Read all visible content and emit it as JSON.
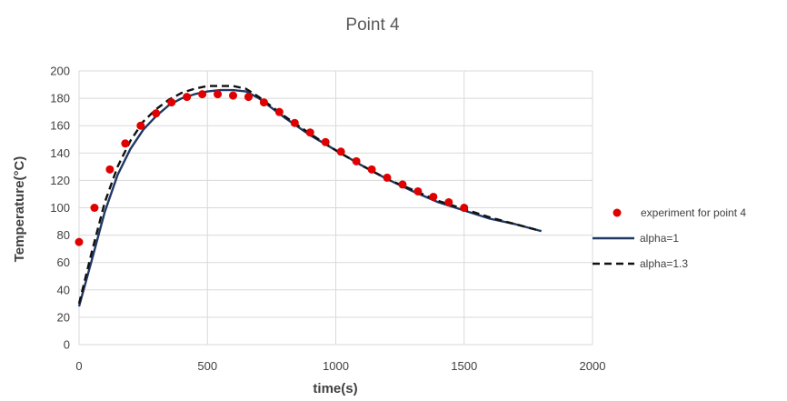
{
  "chart_data": {
    "type": "scatter",
    "title": "Point 4",
    "xlabel": "time(s)",
    "ylabel": "Temperature(°C)",
    "xlim": [
      0,
      2000
    ],
    "ylim": [
      0,
      200
    ],
    "xticks": [
      "0",
      "500",
      "1000",
      "1500",
      "2000"
    ],
    "yticks": [
      "0",
      "20",
      "40",
      "60",
      "80",
      "100",
      "120",
      "140",
      "160",
      "180",
      "200"
    ],
    "grid": "vertical and horizontal",
    "legend_position": "right",
    "series": [
      {
        "name": "experiment for point 4",
        "type": "scatter",
        "color": "#e00000",
        "x": [
          0,
          60,
          120,
          180,
          240,
          300,
          360,
          420,
          480,
          540,
          600,
          660,
          720,
          780,
          840,
          900,
          960,
          1020,
          1080,
          1140,
          1200,
          1260,
          1320,
          1380,
          1440,
          1500
        ],
        "y": [
          75,
          100,
          128,
          147,
          160,
          169,
          177,
          181,
          183,
          183,
          182,
          181,
          177,
          170,
          162,
          155,
          148,
          141,
          134,
          128,
          122,
          117,
          112,
          108,
          104,
          100
        ]
      },
      {
        "name": "alpha=1",
        "type": "line",
        "style": "solid",
        "color": "#1f3864",
        "x": [
          0,
          50,
          100,
          150,
          200,
          250,
          300,
          350,
          400,
          450,
          500,
          550,
          600,
          650,
          700,
          800,
          900,
          1000,
          1100,
          1200,
          1300,
          1400,
          1500,
          1600,
          1700,
          1800
        ],
        "y": [
          28,
          62,
          97,
          124,
          143,
          157,
          167,
          175,
          180,
          183,
          185,
          186,
          186,
          185,
          180,
          166,
          153,
          142,
          131,
          121,
          112,
          104,
          98,
          92,
          88,
          83
        ]
      },
      {
        "name": "alpha=1.3",
        "type": "line",
        "style": "dashed",
        "color": "#111111",
        "x": [
          0,
          50,
          100,
          150,
          200,
          250,
          300,
          350,
          400,
          450,
          500,
          550,
          600,
          650,
          700,
          800,
          900,
          1000,
          1100,
          1200,
          1300,
          1400,
          1500,
          1600,
          1700,
          1800
        ],
        "y": [
          30,
          68,
          104,
          130,
          149,
          163,
          172,
          179,
          184,
          187,
          189,
          189,
          189,
          187,
          181,
          167,
          154,
          142,
          131,
          121,
          113,
          105,
          99,
          93,
          88,
          83
        ]
      }
    ]
  }
}
